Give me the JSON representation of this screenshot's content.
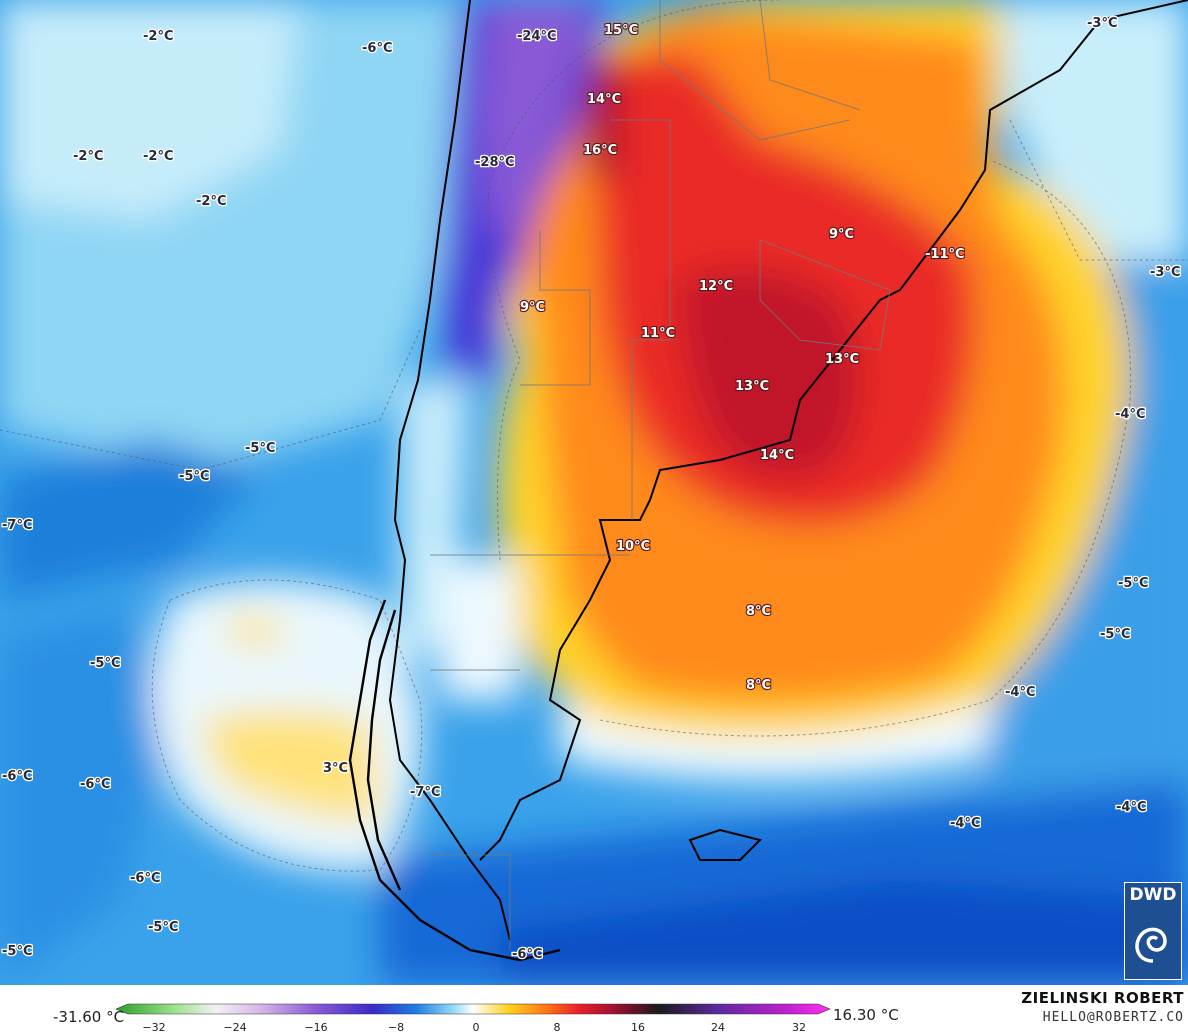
{
  "map": {
    "labels": [
      {
        "id": "l1",
        "text": "-2°C"
      },
      {
        "id": "l2",
        "text": "-6°C"
      },
      {
        "id": "l3",
        "text": "-24°C"
      },
      {
        "id": "l4",
        "text": "15°C"
      },
      {
        "id": "l5",
        "text": "-3°C"
      },
      {
        "id": "l6",
        "text": "14°C"
      },
      {
        "id": "l7",
        "text": "-2°C"
      },
      {
        "id": "l8",
        "text": "-2°C"
      },
      {
        "id": "l9",
        "text": "-28°C"
      },
      {
        "id": "l10",
        "text": "16°C"
      },
      {
        "id": "l11",
        "text": "-2°C"
      },
      {
        "id": "l12",
        "text": "9°C"
      },
      {
        "id": "l13",
        "text": "-11°C"
      },
      {
        "id": "l14",
        "text": "-3°C"
      },
      {
        "id": "l15",
        "text": "12°C"
      },
      {
        "id": "l16",
        "text": "9°C"
      },
      {
        "id": "l17",
        "text": "11°C"
      },
      {
        "id": "l18",
        "text": "13°C"
      },
      {
        "id": "l19",
        "text": "13°C"
      },
      {
        "id": "l20",
        "text": "-4°C"
      },
      {
        "id": "l21",
        "text": "-5°C"
      },
      {
        "id": "l22",
        "text": "-5°C"
      },
      {
        "id": "l23",
        "text": "14°C"
      },
      {
        "id": "l24",
        "text": "-7°C"
      },
      {
        "id": "l25",
        "text": "10°C"
      },
      {
        "id": "l26",
        "text": "-5°C"
      },
      {
        "id": "l27",
        "text": "8°C"
      },
      {
        "id": "l28",
        "text": "-5°C"
      },
      {
        "id": "l29",
        "text": "-5°C"
      },
      {
        "id": "l30",
        "text": "8°C"
      },
      {
        "id": "l31",
        "text": "-4°C"
      },
      {
        "id": "l32",
        "text": "-6°C"
      },
      {
        "id": "l33",
        "text": "-6°C"
      },
      {
        "id": "l34",
        "text": "3°C"
      },
      {
        "id": "l35",
        "text": "-7°C"
      },
      {
        "id": "l36",
        "text": "-4°C"
      },
      {
        "id": "l37",
        "text": "-4°C"
      },
      {
        "id": "l38",
        "text": "-6°C"
      },
      {
        "id": "l39",
        "text": "-5°C"
      },
      {
        "id": "l40",
        "text": "-5°C"
      },
      {
        "id": "l41",
        "text": "-6°C"
      }
    ]
  },
  "legend": {
    "min_label": "-31.60 °C",
    "max_label": "16.30 °C",
    "ticks": [
      "−32",
      "−24",
      "−16",
      "−8",
      "0",
      "8",
      "16",
      "24",
      "32"
    ],
    "author": "ZIELINSKI ROBERT",
    "email": "HELLO@ROBERTZ.CO",
    "logo_text": "DWD"
  },
  "colors": {
    "ocean_cold": "#1e88e0",
    "ocean_mild": "#7fcdf0",
    "near_zero": "#f4fbff",
    "warm_yellow": "#ffd21f",
    "warm_orange": "#ff7a14",
    "warm_red": "#e81e2a",
    "hot_darkred": "#b0102a",
    "cold_purple": "#6a2ad0",
    "dwd_blue": "#1f4f93"
  }
}
